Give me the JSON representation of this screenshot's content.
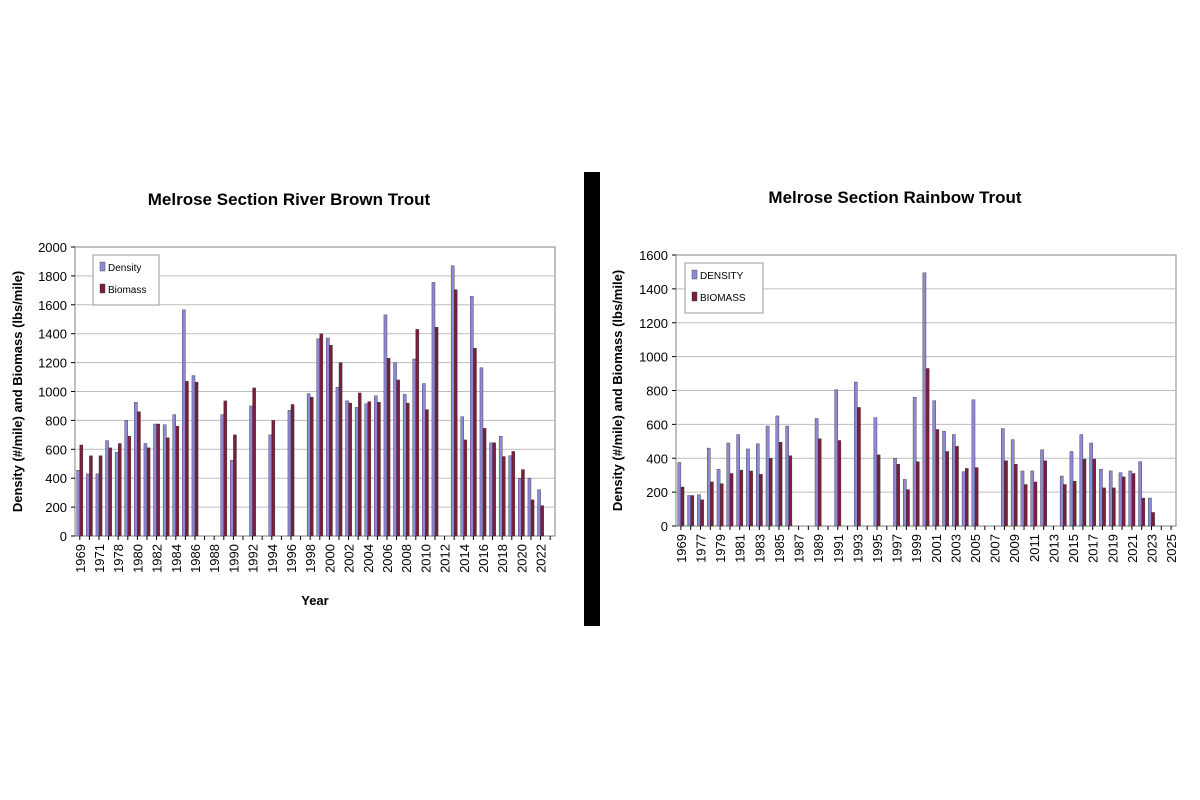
{
  "colors": {
    "density": "#8c8ad6",
    "biomass": "#7a1e3c",
    "divider": "#000000",
    "grid": "#bdbdbd",
    "plot_bg": "#ffffff"
  },
  "chart_data": [
    {
      "type": "bar",
      "title": "Melrose Section River Brown Trout",
      "xlabel": "Year",
      "ylabel": "Density (#/mile) and Biomass (lbs/mile)",
      "ylim": [
        0,
        2000
      ],
      "yticks": [
        0,
        200,
        400,
        600,
        800,
        1000,
        1200,
        1400,
        1600,
        1800,
        2000
      ],
      "grid": true,
      "legend_position": "top-left",
      "categories": [
        "1969",
        "1970",
        "1971",
        "1977",
        "1978",
        "1979",
        "1980",
        "1981",
        "1982",
        "1983",
        "1984",
        "1985",
        "1986",
        "1987",
        "1988",
        "1989",
        "1990",
        "1991",
        "1992",
        "1993",
        "1994",
        "1995",
        "1996",
        "1997",
        "1998",
        "1999",
        "2000",
        "2001",
        "2002",
        "2003",
        "2004",
        "2005",
        "2006",
        "2007",
        "2008",
        "2009",
        "2010",
        "2011",
        "2012",
        "2013",
        "2014",
        "2015",
        "2016",
        "2017",
        "2018",
        "2019",
        "2020",
        "2021",
        "2022",
        "2023"
      ],
      "tick_labels": [
        "1969",
        "",
        "1971",
        "",
        "1978",
        "",
        "1980",
        "",
        "1982",
        "",
        "1984",
        "",
        "1986",
        "",
        "1988",
        "",
        "1990",
        "",
        "1992",
        "",
        "1994",
        "",
        "1996",
        "",
        "1998",
        "",
        "2000",
        "",
        "2002",
        "",
        "2004",
        "",
        "2006",
        "",
        "2008",
        "",
        "2010",
        "",
        "2012",
        "",
        "2014",
        "",
        "2016",
        "",
        "2018",
        "",
        "2020",
        "",
        "2022",
        ""
      ],
      "series": [
        {
          "name": "Density",
          "values": [
            455,
            430,
            430,
            660,
            580,
            800,
            925,
            640,
            775,
            770,
            840,
            1565,
            1110,
            null,
            null,
            840,
            525,
            null,
            900,
            null,
            700,
            null,
            870,
            null,
            985,
            1365,
            1370,
            1030,
            935,
            890,
            915,
            970,
            1530,
            1200,
            980,
            1225,
            1055,
            1755,
            null,
            1870,
            825,
            1660,
            1165,
            645,
            690,
            555,
            400,
            400,
            320,
            0
          ]
        },
        {
          "name": "Biomass",
          "values": [
            630,
            555,
            555,
            610,
            640,
            690,
            860,
            610,
            775,
            680,
            760,
            1070,
            1065,
            null,
            null,
            935,
            700,
            null,
            1025,
            null,
            800,
            null,
            910,
            null,
            960,
            1400,
            1320,
            1200,
            920,
            990,
            930,
            925,
            1230,
            1080,
            920,
            1430,
            875,
            1445,
            null,
            1705,
            665,
            1300,
            745,
            645,
            550,
            585,
            460,
            250,
            210,
            0
          ]
        }
      ]
    },
    {
      "type": "bar",
      "title": "Melrose Section Rainbow Trout",
      "xlabel": "",
      "ylabel": "Density (#/mile) and Biomass (lbs/mile)",
      "ylim": [
        0,
        1600
      ],
      "yticks": [
        0,
        200,
        400,
        600,
        800,
        1000,
        1200,
        1400,
        1600
      ],
      "grid": true,
      "legend_position": "top-left",
      "categories": [
        "1969",
        "1970",
        "1977",
        "1978",
        "1979",
        "1980",
        "1981",
        "1982",
        "1983",
        "1984",
        "1985",
        "1986",
        "1987",
        "1988",
        "1989",
        "1990",
        "1991",
        "1992",
        "1993",
        "1994",
        "1995",
        "1996",
        "1997",
        "1998",
        "1999",
        "2000",
        "2001",
        "2002",
        "2003",
        "2004",
        "2005",
        "2006",
        "2007",
        "2008",
        "2009",
        "2010",
        "2011",
        "2012",
        "2013",
        "2014",
        "2015",
        "2016",
        "2017",
        "2018",
        "2019",
        "2020",
        "2021",
        "2022",
        "2023",
        "2024",
        "2025"
      ],
      "tick_labels": [
        "1969",
        "",
        "1977",
        "",
        "1979",
        "",
        "1981",
        "",
        "1983",
        "",
        "1985",
        "",
        "1987",
        "",
        "1989",
        "",
        "1991",
        "",
        "1993",
        "",
        "1995",
        "",
        "1997",
        "",
        "1999",
        "",
        "2001",
        "",
        "2003",
        "",
        "2005",
        "",
        "2007",
        "",
        "2009",
        "",
        "2011",
        "",
        "2013",
        "",
        "2015",
        "",
        "2017",
        "",
        "2019",
        "",
        "2021",
        "",
        "2023",
        "",
        "2025"
      ],
      "series": [
        {
          "name": "DENSITY",
          "values": [
            375,
            180,
            185,
            460,
            335,
            490,
            540,
            455,
            485,
            590,
            650,
            590,
            null,
            null,
            635,
            null,
            805,
            null,
            850,
            null,
            640,
            null,
            400,
            275,
            760,
            1495,
            740,
            560,
            540,
            320,
            745,
            null,
            null,
            575,
            510,
            325,
            325,
            450,
            null,
            295,
            440,
            540,
            490,
            335,
            325,
            315,
            325,
            380,
            165,
            null,
            null
          ]
        },
        {
          "name": "BIOMASS",
          "values": [
            230,
            180,
            155,
            260,
            250,
            310,
            330,
            325,
            305,
            400,
            495,
            415,
            null,
            null,
            515,
            null,
            505,
            null,
            700,
            null,
            420,
            null,
            365,
            215,
            380,
            930,
            570,
            440,
            470,
            340,
            345,
            null,
            null,
            385,
            365,
            245,
            260,
            385,
            null,
            245,
            265,
            395,
            395,
            225,
            225,
            290,
            310,
            165,
            80,
            null,
            null
          ]
        }
      ]
    }
  ]
}
